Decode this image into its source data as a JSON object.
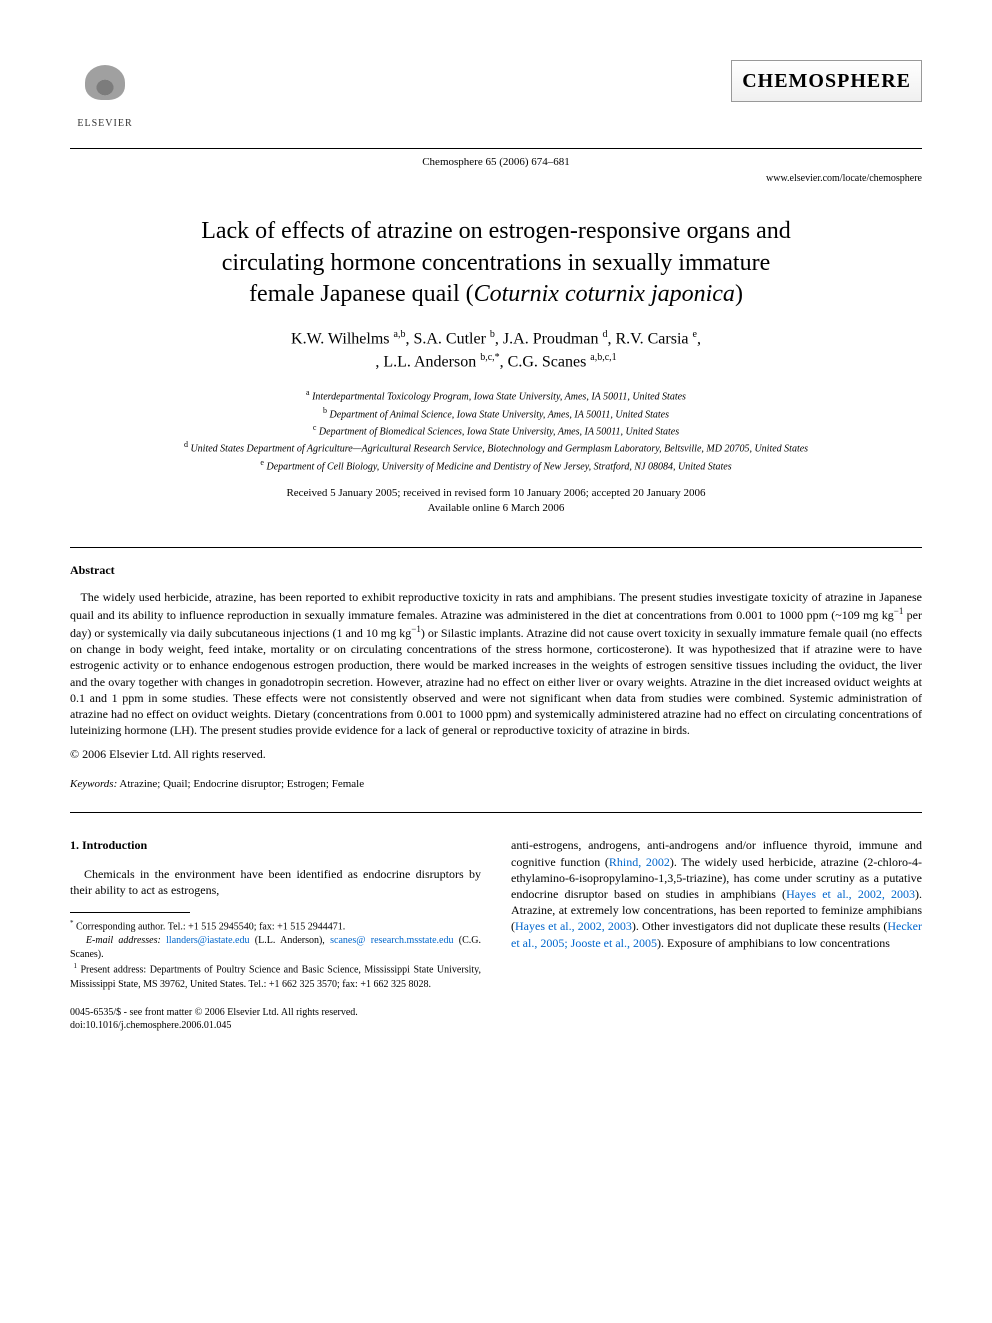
{
  "publisher": {
    "name": "ELSEVIER",
    "citation": "Chemosphere 65 (2006) 674–681",
    "journal_display": "CHEMOSPHERE",
    "url": "www.elsevier.com/locate/chemosphere"
  },
  "title": {
    "line1": "Lack of effects of atrazine on estrogen-responsive organs and",
    "line2": "circulating hormone concentrations in sexually immature",
    "line3_prefix": "female Japanese quail (",
    "line3_italic": "Coturnix coturnix japonica",
    "line3_suffix": ")"
  },
  "authors": {
    "list": "K.W. Wilhelms ",
    "a1_sup": "a,b",
    "a2": ", S.A. Cutler ",
    "a2_sup": "b",
    "a3": ", J.A. Proudman ",
    "a3_sup": "d",
    "a4": ", R.V. Carsia ",
    "a4_sup": "e",
    "a5": ", L.L. Anderson ",
    "a5_sup": "b,c,*",
    "a6": ", C.G. Scanes ",
    "a6_sup": "a,b,c,1"
  },
  "affiliations": {
    "a": "Interdepartmental Toxicology Program, Iowa State University, Ames, IA 50011, United States",
    "b": "Department of Animal Science, Iowa State University, Ames, IA 50011, United States",
    "c": "Department of Biomedical Sciences, Iowa State University, Ames, IA 50011, United States",
    "d": "United States Department of Agriculture—Agricultural Research Service, Biotechnology and Germplasm Laboratory, Beltsville, MD 20705, United States",
    "e": "Department of Cell Biology, University of Medicine and Dentistry of New Jersey, Stratford, NJ 08084, United States"
  },
  "dates": {
    "received": "Received 5 January 2005; received in revised form 10 January 2006; accepted 20 January 2006",
    "online": "Available online 6 March 2006"
  },
  "abstract": {
    "heading": "Abstract",
    "body_p1": "The widely used herbicide, atrazine, has been reported to exhibit reproductive toxicity in rats and amphibians. The present studies investigate toxicity of atrazine in Japanese quail and its ability to influence reproduction in sexually immature females. Atrazine was administered in the diet at concentrations from 0.001 to 1000 ppm (~109 mg kg",
    "sup1": "−1",
    "body_p2": " per day) or systemically via daily subcutaneous injections (1 and 10 mg kg",
    "sup2": "−1",
    "body_p3": ") or Silastic implants. Atrazine did not cause overt toxicity in sexually immature female quail (no effects on change in body weight, feed intake, mortality or on circulating concentrations of the stress hormone, corticosterone). It was hypothesized that if atrazine were to have estrogenic activity or to enhance endogenous estrogen production, there would be marked increases in the weights of estrogen sensitive tissues including the oviduct, the liver and the ovary together with changes in gonadotropin secretion. However, atrazine had no effect on either liver or ovary weights. Atrazine in the diet increased oviduct weights at 0.1 and 1 ppm in some studies. These effects were not consistently observed and were not significant when data from studies were combined. Systemic administration of atrazine had no effect on oviduct weights. Dietary (concentrations from 0.001 to 1000 ppm) and systemically administered atrazine had no effect on circulating concentrations of luteinizing hormone (LH). The present studies provide evidence for a lack of general or reproductive toxicity of atrazine in birds.",
    "copyright": "© 2006 Elsevier Ltd. All rights reserved."
  },
  "keywords": {
    "label": "Keywords:",
    "text": " Atrazine; Quail; Endocrine disruptor; Estrogen; Female"
  },
  "introduction": {
    "heading": "1. Introduction",
    "col1_text": "Chemicals in the environment have been identified as endocrine disruptors by their ability to act as estrogens,",
    "col2_p1": "anti-estrogens, androgens, anti-androgens and/or influence thyroid, immune and cognitive function (",
    "col2_link1": "Rhind, 2002",
    "col2_p2": "). The widely used herbicide, atrazine (2-chloro-4-ethylamino-6-isopropylamino-1,3,5-triazine), has come under scrutiny as a putative endocrine disruptor based on studies in amphibians (",
    "col2_link2": "Hayes et al., 2002, 2003",
    "col2_p3": "). Atrazine, at extremely low concentrations, has been reported to feminize amphibians (",
    "col2_link3": "Hayes et al., 2002, 2003",
    "col2_p4": "). Other investigators did not duplicate these results (",
    "col2_link4": "Hecker et al., 2005; Jooste et al., 2005",
    "col2_p5": "). Exposure of amphibians to low concentrations"
  },
  "footnotes": {
    "corr_label": "*",
    "corr_text": " Corresponding author. Tel.: +1 515 2945540; fax: +1 515 2944471.",
    "email_label": "E-mail addresses:",
    "email1": "llanders@iastate.edu",
    "email1_who": " (L.L. Anderson), ",
    "email2": "scanes@ research.msstate.edu",
    "email2_who": " (C.G. Scanes).",
    "present_label": "1",
    "present_text": " Present address: Departments of Poultry Science and Basic Science, Mississippi State University, Mississippi State, MS 39762, United States. Tel.: +1 662 325 3570; fax: +1 662 325 8028."
  },
  "doi": {
    "line1": "0045-6535/$ - see front matter © 2006 Elsevier Ltd. All rights reserved.",
    "line2": "doi:10.1016/j.chemosphere.2006.01.045"
  }
}
